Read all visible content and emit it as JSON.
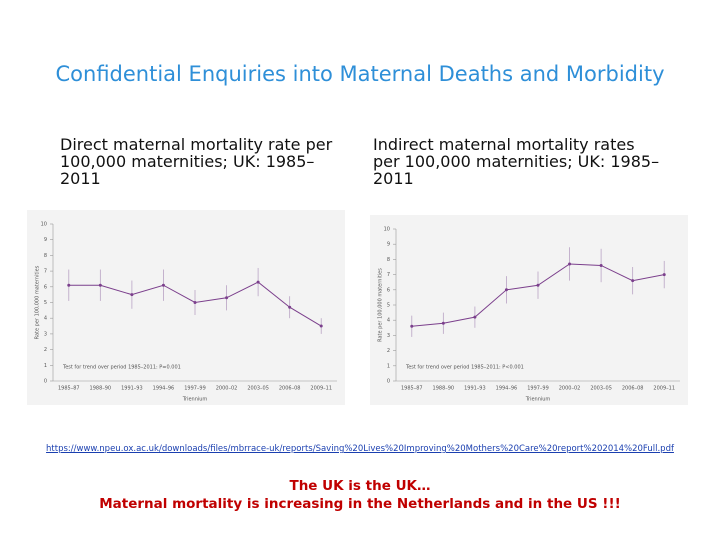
{
  "slide": {
    "title": "Confidential Enquiries into Maternal Deaths and Morbidity",
    "link": "https://www.npeu.ox.ac.uk/downloads/files/mbrrace-uk/reports/Saving%20Lives%20Improving%20Mothers%20Care%20report%202014%20Full.pdf",
    "notes": [
      "The UK is the UK…",
      "Maternal mortality is increasing in the Netherlands and in the US !!!"
    ]
  },
  "chart_data": [
    {
      "type": "line",
      "title": "Direct maternal mortality rate per 100,000 maternities; UK: 1985–2011",
      "y_label": "Rate per 100,000 maternities",
      "x_label": "Triennium",
      "annotation": "Test for trend over period 1985–2011: P=0.001",
      "categories": [
        "1985–87",
        "1988–90",
        "1991–93",
        "1994–96",
        "1997–99",
        "2000–02",
        "2003–05",
        "2006–08",
        "2009–11"
      ],
      "series": [
        {
          "color": "#7b3f8c",
          "values": [
            6.1,
            6.1,
            5.5,
            6.1,
            5.0,
            5.3,
            6.3,
            4.7,
            3.5
          ],
          "errors": [
            1.0,
            1.0,
            0.9,
            1.0,
            0.8,
            0.8,
            0.9,
            0.7,
            0.5
          ]
        }
      ],
      "ylim": [
        0,
        10
      ],
      "yticks": [
        0,
        1,
        2,
        3,
        4,
        5,
        6,
        7,
        8,
        9,
        10
      ]
    },
    {
      "type": "line",
      "title": "Indirect maternal mortality rates per 100,000 maternities; UK: 1985–2011",
      "y_label": "Rate per 100,000 maternities",
      "x_label": "Triennium",
      "annotation": "Test for trend over period 1985–2011: P<0.001",
      "categories": [
        "1985–87",
        "1988–90",
        "1991–93",
        "1994–96",
        "1997–99",
        "2000–02",
        "2003–05",
        "2006–08",
        "2009–11"
      ],
      "series": [
        {
          "color": "#7b3f8c",
          "values": [
            3.6,
            3.8,
            4.2,
            6.0,
            6.3,
            7.7,
            7.6,
            6.6,
            7.0
          ],
          "errors": [
            0.7,
            0.7,
            0.7,
            0.9,
            0.9,
            1.1,
            1.1,
            0.9,
            0.9
          ]
        }
      ],
      "ylim": [
        0,
        10
      ],
      "yticks": [
        0,
        1,
        2,
        3,
        4,
        5,
        6,
        7,
        8,
        9,
        10
      ]
    }
  ]
}
